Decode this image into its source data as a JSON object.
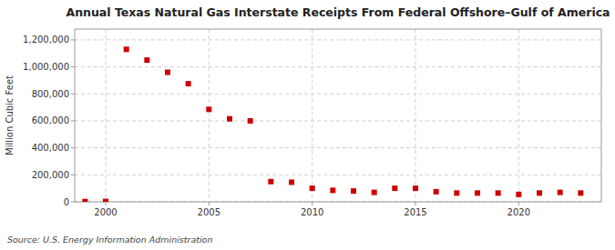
{
  "chart_data": {
    "type": "scatter",
    "title": "Annual Texas Natural Gas Interstate Receipts From Federal Offshore–Gulf of America",
    "ylabel": "Million Cubic Feet",
    "source": "Source: U.S. Energy Information Administration",
    "color": "#cc0000",
    "marker": "square",
    "grid": true,
    "x": [
      1999,
      2000,
      2001,
      2002,
      2003,
      2004,
      2005,
      2006,
      2007,
      2008,
      2009,
      2010,
      2011,
      2012,
      2013,
      2014,
      2015,
      2016,
      2017,
      2018,
      2019,
      2020,
      2021,
      2022,
      2023
    ],
    "values": [
      2000,
      3000,
      1130000,
      1050000,
      960000,
      875000,
      685000,
      615000,
      600000,
      150000,
      145000,
      100000,
      85000,
      80000,
      70000,
      100000,
      100000,
      75000,
      65000,
      65000,
      65000,
      55000,
      65000,
      70000,
      65000
    ],
    "xlim": [
      1998.5,
      2024
    ],
    "ylim": [
      0,
      1280000
    ],
    "xticks": [
      2000,
      2005,
      2010,
      2015,
      2020
    ],
    "yticks": [
      0,
      {
        "value": 200000,
        "label": "200,000"
      },
      {
        "value": 400000,
        "label": "400,000"
      },
      {
        "value": 600000,
        "label": "600,000"
      },
      {
        "value": 800000,
        "label": "800,000"
      },
      {
        "value": 1000000,
        "label": "1,000,000"
      },
      {
        "value": 1200000,
        "label": "1,200,000"
      }
    ]
  }
}
